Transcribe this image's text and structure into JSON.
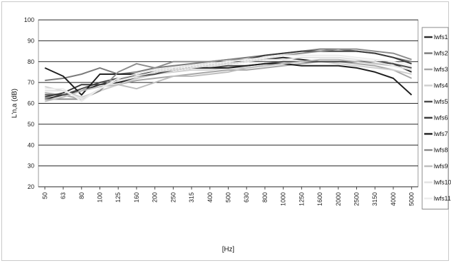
{
  "chart_data": {
    "type": "line",
    "ylabel": "L'n,a (dB)",
    "xlabel": "[Hz]",
    "ylim": [
      20,
      100
    ],
    "yticks": [
      20,
      30,
      40,
      50,
      60,
      70,
      80,
      90,
      100
    ],
    "grid": "horizontal",
    "legend_position": "right",
    "categories": [
      "50",
      "63",
      "80",
      "100",
      "125",
      "160",
      "200",
      "250",
      "315",
      "400",
      "500",
      "630",
      "800",
      "1000",
      "1250",
      "1600",
      "2000",
      "2500",
      "3150",
      "4000",
      "5000"
    ],
    "series": [
      {
        "name": "lwfs1",
        "color": "#2a2a2a",
        "values": [
          62,
          64,
          66,
          69,
          70,
          72,
          74,
          76,
          77,
          78,
          79,
          80,
          81,
          82,
          81,
          80,
          80,
          80,
          80,
          79,
          75
        ]
      },
      {
        "name": "lwfs2",
        "color": "#7a7a7a",
        "values": [
          71,
          72,
          74,
          77,
          74,
          75,
          77,
          78,
          79,
          80,
          81,
          82,
          83,
          84,
          85,
          86,
          86,
          85,
          84,
          82,
          80
        ]
      },
      {
        "name": "lwfs3",
        "color": "#a6a6a6",
        "values": [
          65,
          64,
          62,
          66,
          69,
          71,
          72,
          73,
          74,
          75,
          76,
          76,
          77,
          78,
          79,
          80,
          80,
          79,
          78,
          76,
          72
        ]
      },
      {
        "name": "lwfs4",
        "color": "#cfcfcf",
        "values": [
          68,
          66,
          63,
          66,
          69,
          72,
          74,
          75,
          76,
          76,
          77,
          77,
          78,
          79,
          80,
          80,
          79,
          78,
          77,
          76,
          74
        ]
      },
      {
        "name": "lwfs5",
        "color": "#4a4a4a",
        "values": [
          64,
          64,
          67,
          70,
          72,
          73,
          74,
          76,
          77,
          77,
          78,
          78,
          79,
          80,
          80,
          80,
          80,
          80,
          80,
          79,
          77
        ]
      },
      {
        "name": "lwfs6",
        "color": "#3a3a3a",
        "values": [
          63,
          65,
          69,
          69,
          71,
          74,
          76,
          77,
          78,
          79,
          80,
          81,
          83,
          84,
          85,
          85,
          85,
          85,
          84,
          82,
          79
        ]
      },
      {
        "name": "lwfs7",
        "color": "#1f1f1f",
        "values": [
          77,
          73,
          64,
          74,
          74,
          74,
          75,
          76,
          77,
          77,
          77,
          78,
          79,
          79,
          78,
          78,
          78,
          77,
          75,
          72,
          64
        ]
      },
      {
        "name": "lwfs8",
        "color": "#8c8c8c",
        "values": [
          62,
          62,
          62,
          66,
          75,
          79,
          77,
          80,
          80,
          80,
          81,
          81,
          82,
          83,
          84,
          85,
          86,
          86,
          85,
          84,
          81
        ]
      },
      {
        "name": "lwfs9",
        "color": "#bdbdbd",
        "values": [
          61,
          63,
          66,
          68,
          69,
          67,
          70,
          73,
          73,
          74,
          75,
          77,
          78,
          79,
          80,
          81,
          81,
          80,
          79,
          78,
          76
        ]
      },
      {
        "name": "lwfs10",
        "color": "#e2e2e2",
        "values": [
          66,
          66,
          62,
          67,
          71,
          73,
          75,
          76,
          77,
          78,
          79,
          80,
          81,
          81,
          82,
          82,
          82,
          81,
          80,
          78,
          76
        ]
      },
      {
        "name": "lwfs11",
        "color": "#ededed",
        "values": [
          67,
          67,
          61,
          67,
          72,
          74,
          76,
          77,
          78,
          79,
          80,
          81,
          82,
          83,
          83,
          83,
          83,
          82,
          81,
          80,
          78
        ]
      }
    ]
  }
}
